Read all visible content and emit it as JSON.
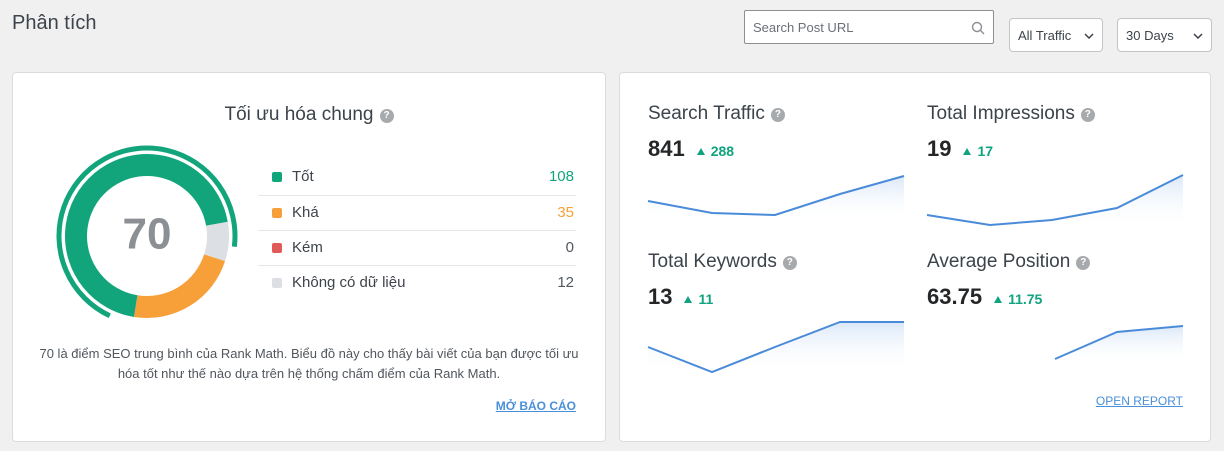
{
  "header": {
    "title": "Phân tích",
    "search_placeholder": "Search Post URL",
    "traffic_filter": "All Traffic",
    "range_filter": "30 Days"
  },
  "overview": {
    "title": "Tối ưu hóa chung",
    "score": 70,
    "items": [
      {
        "label": "Tốt",
        "value": 108,
        "color": "#12a57c"
      },
      {
        "label": "Khá",
        "value": 35,
        "color": "#f7a03a"
      },
      {
        "label": "Kém",
        "value": 0,
        "color": "#e05a5a"
      },
      {
        "label": "Không có dữ liệu",
        "value": 12,
        "color": "#dcdfe3"
      }
    ],
    "description": "70 là điểm SEO trung bình của Rank Math. Biểu đồ này cho thấy bài viết của bạn được tối ưu hóa tốt như thế nào dựa trên hệ thống chấm điểm của Rank Math.",
    "link": "MỞ BÁO CÁO"
  },
  "metrics": [
    {
      "title": "Search Traffic",
      "value": 841,
      "change": 288
    },
    {
      "title": "Total Impressions",
      "value": 19,
      "change": 17
    },
    {
      "title": "Total Keywords",
      "value": 13,
      "change": 11
    },
    {
      "title": "Average Position",
      "value": 63.75,
      "change": 11.75
    }
  ],
  "metrics_link": "OPEN REPORT"
}
